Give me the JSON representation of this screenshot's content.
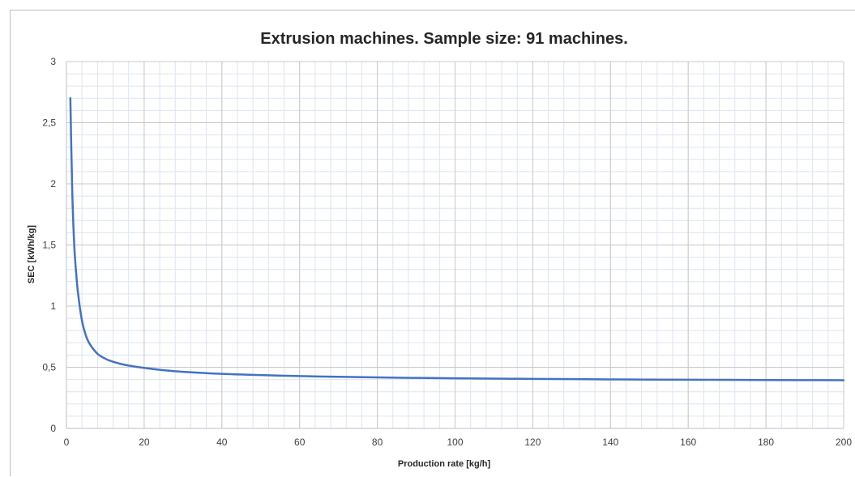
{
  "chart_data": {
    "type": "line",
    "title": "Extrusion machines. Sample size: 91 machines.",
    "xlabel": "Production rate [kg/h]",
    "ylabel": "SEC [kWh/kg]",
    "xlim": [
      0,
      200
    ],
    "ylim": [
      0,
      3
    ],
    "x_ticks": [
      "0",
      "20",
      "40",
      "60",
      "80",
      "100",
      "120",
      "140",
      "160",
      "180",
      "200"
    ],
    "y_ticks": [
      "0",
      "0,5",
      "1",
      "1,5",
      "2",
      "2,5",
      "3"
    ],
    "grid": true,
    "legend": "none",
    "series_color": "#4472c4",
    "series": [
      {
        "x": [
          1,
          1.5,
          2,
          2.5,
          3,
          4,
          5,
          6,
          8,
          10,
          12,
          15,
          20,
          25,
          30,
          40,
          50,
          60,
          70,
          80,
          90,
          100,
          120,
          140,
          160,
          180,
          200
        ],
        "y": [
          2.7,
          1.93,
          1.5,
          1.27,
          1.1,
          0.88,
          0.76,
          0.69,
          0.61,
          0.57,
          0.545,
          0.52,
          0.495,
          0.476,
          0.463,
          0.446,
          0.436,
          0.428,
          0.422,
          0.417,
          0.413,
          0.41,
          0.405,
          0.401,
          0.398,
          0.396,
          0.394
        ]
      }
    ]
  }
}
